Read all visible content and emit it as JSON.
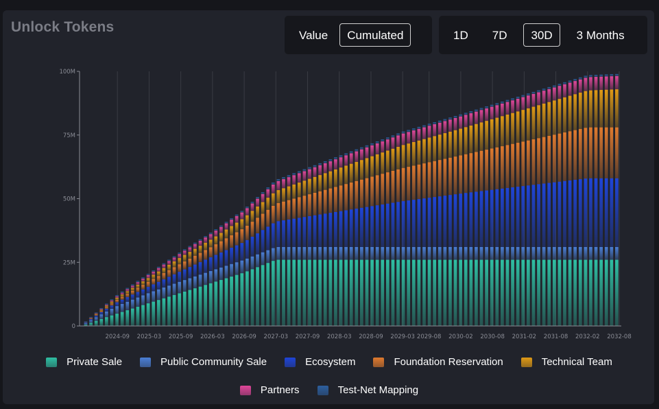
{
  "header": {
    "title": "Unlock Tokens",
    "mode_buttons": [
      "Value",
      "Cumulated"
    ],
    "active_mode": 1,
    "range_buttons": [
      "1D",
      "7D",
      "30D",
      "3 Months"
    ],
    "active_range": 2
  },
  "chart_data": {
    "type": "bar",
    "stacked": true,
    "title": "",
    "xlabel": "",
    "ylabel": "",
    "ylim": [
      0,
      100000000
    ],
    "y_ticks": [
      0,
      25000000,
      50000000,
      75000000,
      100000000
    ],
    "y_tick_labels": [
      "0",
      "25M",
      "50M",
      "75M",
      "100M"
    ],
    "x_tick_labels": [
      "2024-09",
      "2025-03",
      "2025-09",
      "2026-03",
      "2026-09",
      "2027-03",
      "2027-09",
      "2028-03",
      "2028-09",
      "2029-03",
      "2029-08",
      "2030-02",
      "2030-08",
      "2031-02",
      "2031-08",
      "2032-02",
      "2032-08"
    ],
    "x_range": [
      "2024-03",
      "2032-08"
    ],
    "bar_interval": "30D",
    "grid": "vertical",
    "legend_position": "bottom",
    "series": [
      {
        "name": "Private Sale",
        "color": "#2fbfa3",
        "keyframes": [
          [
            "2024-03",
            500000
          ],
          [
            "2024-07",
            3500000
          ],
          [
            "2025-03",
            9000000
          ],
          [
            "2025-09",
            13000000
          ],
          [
            "2026-03",
            17000000
          ],
          [
            "2026-09",
            21000000
          ],
          [
            "2027-03",
            26000000
          ],
          [
            "2032-08",
            26000000
          ]
        ]
      },
      {
        "name": "Public Community Sale",
        "color": "#4b7fd6",
        "keyframes": [
          [
            "2024-03",
            700000
          ],
          [
            "2024-09",
            3000000
          ],
          [
            "2025-03",
            4000000
          ],
          [
            "2025-09",
            4500000
          ],
          [
            "2026-03",
            4800000
          ],
          [
            "2026-09",
            5000000
          ],
          [
            "2027-03",
            5000000
          ],
          [
            "2032-08",
            5000000
          ]
        ]
      },
      {
        "name": "Ecosystem",
        "color": "#1f45d8",
        "keyframes": [
          [
            "2024-03",
            200000
          ],
          [
            "2024-09",
            1500000
          ],
          [
            "2025-03",
            2500000
          ],
          [
            "2025-09",
            4000000
          ],
          [
            "2026-03",
            5500000
          ],
          [
            "2026-09",
            7000000
          ],
          [
            "2027-03",
            10000000
          ],
          [
            "2028-03",
            14000000
          ],
          [
            "2029-03",
            18000000
          ],
          [
            "2030-02",
            21000000
          ],
          [
            "2031-02",
            24000000
          ],
          [
            "2032-02",
            27000000
          ],
          [
            "2032-08",
            27000000
          ]
        ]
      },
      {
        "name": "Foundation Reservation",
        "color": "#e07a2e",
        "keyframes": [
          [
            "2024-03",
            100000
          ],
          [
            "2024-09",
            1000000
          ],
          [
            "2025-03",
            2000000
          ],
          [
            "2025-09",
            3000000
          ],
          [
            "2026-03",
            4000000
          ],
          [
            "2026-09",
            5500000
          ],
          [
            "2027-03",
            7000000
          ],
          [
            "2028-03",
            10000000
          ],
          [
            "2029-03",
            13000000
          ],
          [
            "2030-02",
            15000000
          ],
          [
            "2031-02",
            17500000
          ],
          [
            "2032-02",
            20000000
          ],
          [
            "2032-08",
            20000000
          ]
        ]
      },
      {
        "name": "Technical Team",
        "color": "#e09a15",
        "keyframes": [
          [
            "2024-03",
            0
          ],
          [
            "2024-09",
            800000
          ],
          [
            "2025-03",
            1500000
          ],
          [
            "2025-09",
            2500000
          ],
          [
            "2026-03",
            3000000
          ],
          [
            "2026-09",
            4000000
          ],
          [
            "2027-03",
            5000000
          ],
          [
            "2028-03",
            7000000
          ],
          [
            "2029-03",
            9000000
          ],
          [
            "2030-02",
            10500000
          ],
          [
            "2031-02",
            12500000
          ],
          [
            "2032-02",
            14500000
          ],
          [
            "2032-08",
            15000000
          ]
        ]
      },
      {
        "name": "Partners",
        "color": "#e0479a",
        "keyframes": [
          [
            "2024-03",
            0
          ],
          [
            "2024-09",
            600000
          ],
          [
            "2025-03",
            1200000
          ],
          [
            "2025-09",
            1600000
          ],
          [
            "2026-03",
            2200000
          ],
          [
            "2026-09",
            2700000
          ],
          [
            "2027-03",
            3500000
          ],
          [
            "2028-03",
            4000000
          ],
          [
            "2029-03",
            4500000
          ],
          [
            "2030-02",
            4800000
          ],
          [
            "2031-02",
            5000000
          ],
          [
            "2032-02",
            5200000
          ],
          [
            "2032-08",
            5200000
          ]
        ]
      },
      {
        "name": "Test-Net Mapping",
        "color": "#2d5f9e",
        "keyframes": [
          [
            "2024-03",
            300000
          ],
          [
            "2024-09",
            500000
          ],
          [
            "2025-03",
            500000
          ],
          [
            "2026-09",
            600000
          ],
          [
            "2027-03",
            800000
          ],
          [
            "2032-08",
            800000
          ]
        ]
      }
    ]
  }
}
